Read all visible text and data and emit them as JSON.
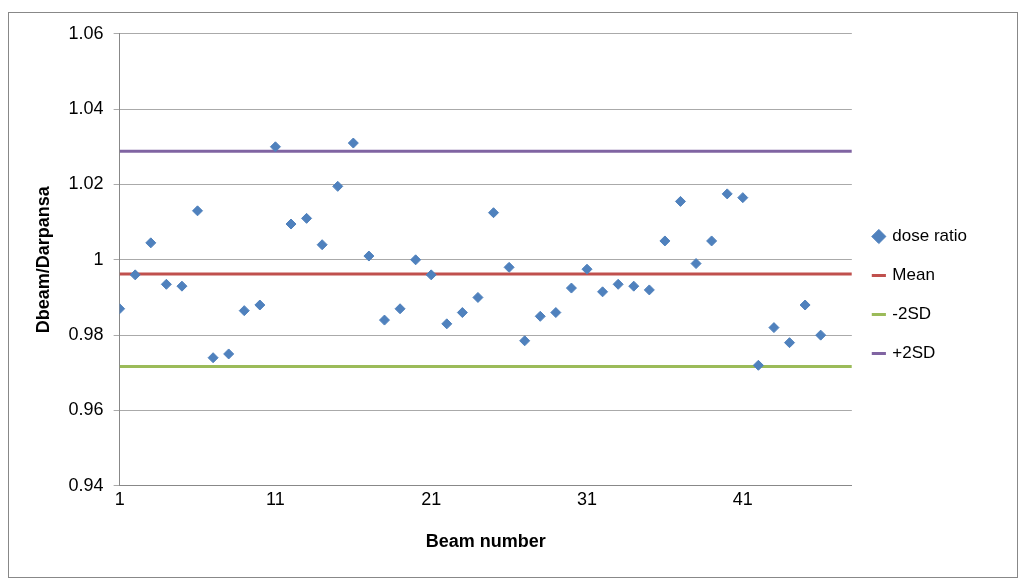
{
  "chart_data": {
    "type": "scatter",
    "xlabel": "Beam number",
    "ylabel": "Dbeam/Darpansa",
    "xlim": [
      1,
      48
    ],
    "xticks": [
      1,
      11,
      21,
      31,
      41
    ],
    "ylim": [
      0.94,
      1.06
    ],
    "yticks": [
      0.94,
      0.96,
      0.98,
      1,
      1.02,
      1.04,
      1.06
    ],
    "grid": "y",
    "legend": "right",
    "series": [
      {
        "name": "dose ratio",
        "type": "scatter",
        "marker": "diamond",
        "color": "#4f81bd",
        "x": [
          1,
          2,
          3,
          4,
          5,
          6,
          7,
          8,
          9,
          10,
          11,
          12,
          13,
          14,
          15,
          16,
          17,
          18,
          19,
          20,
          21,
          22,
          23,
          24,
          25,
          26,
          27,
          28,
          29,
          30,
          31,
          32,
          33,
          34,
          35,
          36,
          37,
          38,
          39,
          40,
          41,
          42,
          43,
          44,
          45,
          46
        ],
        "values": [
          0.987,
          0.996,
          1.0045,
          0.9935,
          0.993,
          1.013,
          0.974,
          0.975,
          0.9865,
          0.988,
          1.03,
          1.0095,
          1.011,
          1.004,
          1.0195,
          1.031,
          1.001,
          0.984,
          0.987,
          1.0,
          0.996,
          0.983,
          0.986,
          0.99,
          1.0125,
          0.998,
          0.9785,
          0.985,
          0.986,
          0.9925,
          0.9975,
          0.9915,
          0.9935,
          0.993,
          0.992,
          1.005,
          1.0155,
          0.999,
          1.005,
          1.0175,
          1.0165,
          0.972,
          0.982,
          0.978,
          0.988,
          0.98
        ]
      },
      {
        "name": "Mean",
        "type": "line",
        "marker": "none",
        "color": "#c0504d",
        "x": [
          1,
          48
        ],
        "values": [
          0.9962,
          0.9962
        ]
      },
      {
        "name": "-2SD",
        "type": "line",
        "marker": "none",
        "color": "#9bbb59",
        "x": [
          1,
          48
        ],
        "values": [
          0.9717,
          0.9717
        ]
      },
      {
        "name": "+2SD",
        "type": "line",
        "marker": "none",
        "color": "#8064a2",
        "x": [
          1,
          48
        ],
        "values": [
          1.0288,
          1.0288
        ]
      }
    ]
  }
}
